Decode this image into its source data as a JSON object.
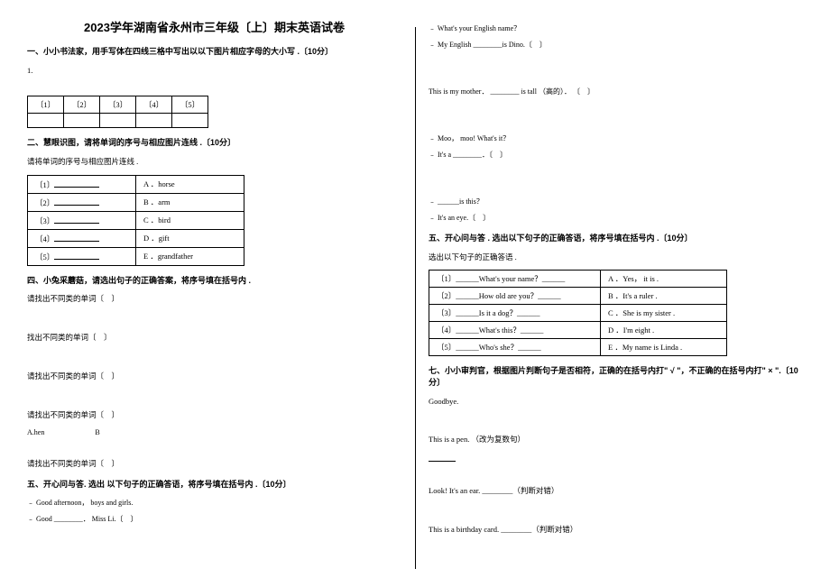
{
  "title": "2023学年湖南省永州市三年级〔上〕期末英语试卷",
  "left": {
    "s1_header": "一、小小书法家，用手写体在四线三格中写出以以下图片相应字母的大小写 .〔10分〕",
    "s1_q": "1.",
    "s1_cells": [
      "〔1〕",
      "〔2〕",
      "〔3〕",
      "〔4〕",
      "〔5〕"
    ],
    "s2_header": "二、慧眼识图，请将单词的序号与相应图片连线 .〔10分〕",
    "s2_instruct": "请将单词的序号与相应图片连线 .",
    "s2_rows": [
      {
        "l": "〔1〕",
        "r": "A ．horse"
      },
      {
        "l": "〔2〕",
        "r": "B ．arm"
      },
      {
        "l": "〔3〕",
        "r": "C ．bird"
      },
      {
        "l": "〔4〕",
        "r": "D ．gift"
      },
      {
        "l": "〔5〕",
        "r": "E ．grandfather"
      }
    ],
    "s4_header": "四、小兔采蘑菇，请选出句子的正确答案，将序号填在括号内 .",
    "s4_q1": "请找出不同类的单词〔　〕",
    "s4_q2": "找出不同类的单词〔　〕",
    "s4_q3": "请找出不同类的单词〔　〕",
    "s4_q4": "请找出不同类的单词〔　〕",
    "s4_q4_opts": "A.hen　　　　　　　B",
    "s4_q5": "请找出不同类的单词〔　〕",
    "s5_header": "五、开心问与答. 选出 以下句子的正确答语，将序号填在括号内 .〔10分〕",
    "s5_q1a": "﹣ Good afternoon， boys and girls.",
    "s5_q1b": "﹣ Good ________． Miss Li.〔　〕"
  },
  "right": {
    "q1a": "﹣ What's your English name？",
    "q1b": "﹣ My English ________is Dino.〔　〕",
    "q2": "This is my mother． ________ is tall （高的）． 〔　〕",
    "q3a": "﹣ Moo， moo! What's it？",
    "q3b": "﹣ It's a ________．〔　〕",
    "q4a": "﹣ ______is this？",
    "q4b": "﹣ It's an eye.〔　〕",
    "s5b_header": "五、开心问与答 . 选出以下句子的正确答语，将序号填在括号内 .〔10分〕",
    "s5b_instruct": "选出以下句子的正确答语 .",
    "s5b_rows": [
      {
        "q": "〔1〕______What's your name？______",
        "a": "A ．Yes， it is ."
      },
      {
        "q": "〔2〕______How old are you？______",
        "a": "B ．It's a ruler ."
      },
      {
        "q": "〔3〕______Is it a dog？______",
        "a": "C ．She is my sister ."
      },
      {
        "q": "〔4〕______What's this？______",
        "a": "D ．I'm eight ."
      },
      {
        "q": "〔5〕______Who's she？______",
        "a": "E ．My name is Linda ."
      }
    ],
    "s7_header": "七、小小审判官，根据图片判断句子是否相符，正确的在括号内打\" √ \"，不正确的在括号内打\" × \".〔10分〕",
    "s7_q1": "Goodbye.",
    "s7_q2": "This is a pen. （改为复数句）",
    "s7_q3": "Look! It's an ear. ________（判断对错）",
    "s7_q4": "This is a birthday card. ________（判断对错）"
  }
}
